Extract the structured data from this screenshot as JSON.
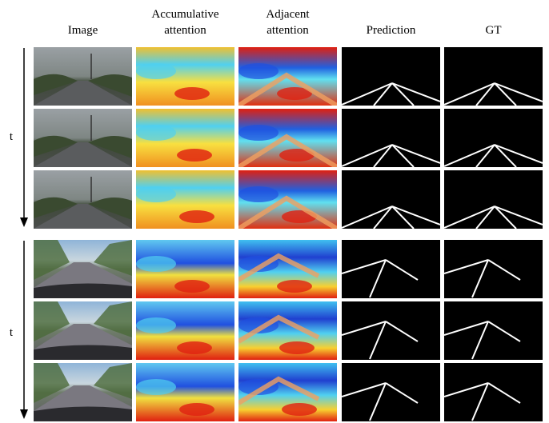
{
  "headers": [
    [
      "Image"
    ],
    [
      "Accumulative",
      "attention"
    ],
    [
      "Adjacent",
      "attention"
    ],
    [
      "Prediction"
    ],
    [
      "GT"
    ]
  ],
  "row_labels": [
    "t",
    "t"
  ]
}
